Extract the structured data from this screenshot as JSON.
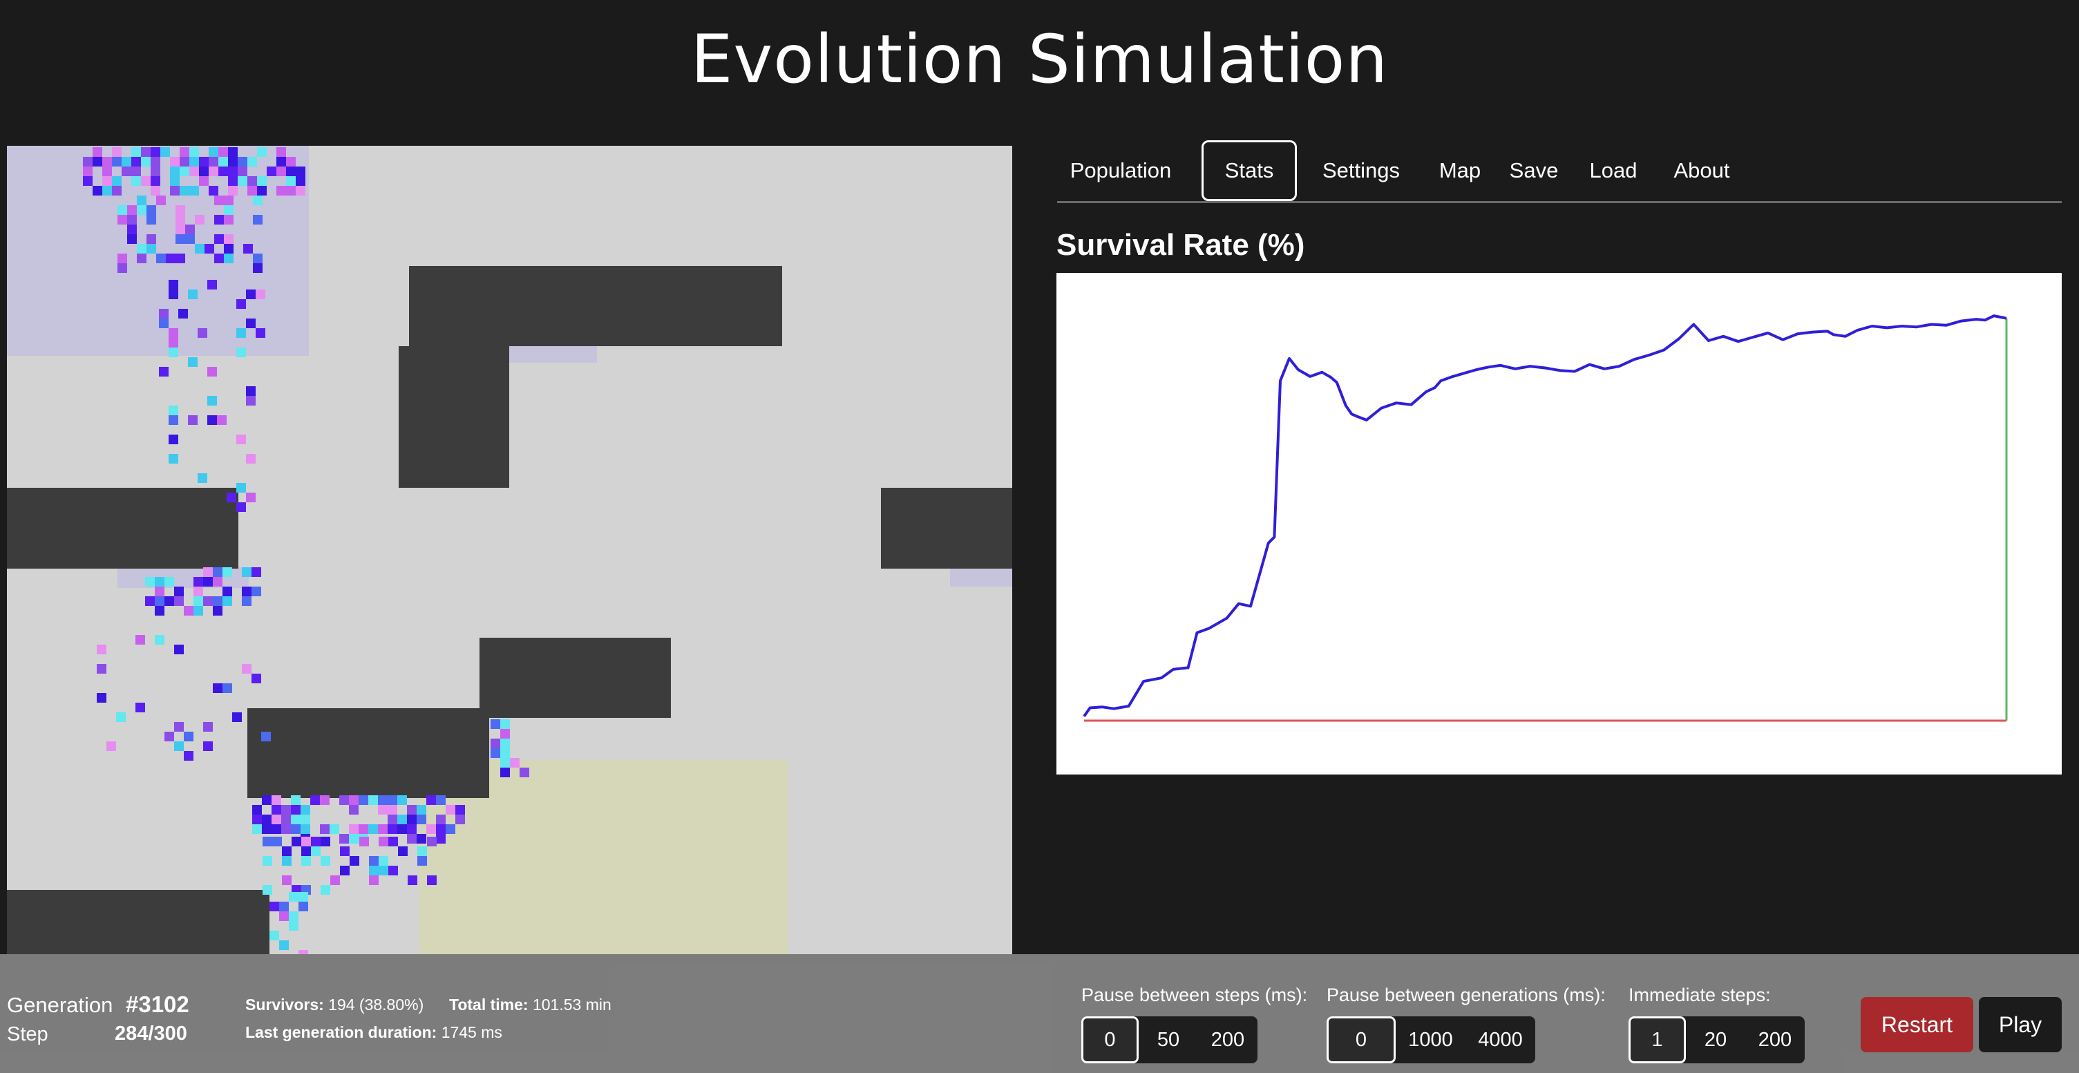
{
  "app": {
    "title": "Evolution Simulation"
  },
  "colors": {
    "background": "#1b1b1b",
    "world_floor": "#d3d3d3",
    "wall": "#3c3c3c",
    "spawn_zone": "#c6c3dd",
    "goal_zone": "#d6d6b9",
    "survival_line": "#2f1fd9",
    "baseline": "#e05252",
    "marker_line": "#5cb85c",
    "restart": "#a8282c",
    "play": "#1b1b1b"
  },
  "tabs": [
    {
      "label": "Population",
      "active": false
    },
    {
      "label": "Stats",
      "active": true
    },
    {
      "label": "Settings",
      "active": false
    },
    {
      "label": "Map",
      "active": false
    },
    {
      "label": "Save",
      "active": false
    },
    {
      "label": "Load",
      "active": false
    },
    {
      "label": "About",
      "active": false
    }
  ],
  "chart_data": {
    "type": "line",
    "title": "Survival Rate (%)",
    "xlabel": "",
    "ylabel": "",
    "grid": false,
    "legend": "none",
    "x_range": [
      0,
      3102
    ],
    "ylim": [
      0,
      50
    ],
    "series": [
      {
        "x": [
          0,
          20,
          60,
          100,
          150,
          200,
          260,
          300,
          350,
          380,
          420,
          480,
          520,
          560,
          620,
          640,
          660,
          690,
          720,
          760,
          800,
          830,
          850,
          880,
          900,
          920,
          950,
          1000,
          1050,
          1100,
          1120,
          1150,
          1180,
          1200,
          1240,
          1280,
          1320,
          1360,
          1400,
          1450,
          1500,
          1550,
          1600,
          1650,
          1700,
          1750,
          1800,
          1850,
          1900,
          1950,
          2000,
          2050,
          2100,
          2150,
          2200,
          2250,
          2300,
          2350,
          2400,
          2450,
          2500,
          2520,
          2560,
          2600,
          2650,
          2700,
          2750,
          2800,
          2850,
          2900,
          2950,
          3000,
          3030,
          3060,
          3090,
          3102
        ],
        "y": [
          0.5,
          1.5,
          1.6,
          1.4,
          1.7,
          4.6,
          5.0,
          6.0,
          6.2,
          10.3,
          10.8,
          12.0,
          13.7,
          13.4,
          20.8,
          21.5,
          39.8,
          42.4,
          41.1,
          40.3,
          40.8,
          40.2,
          39.6,
          36.9,
          35.9,
          35.6,
          35.2,
          36.6,
          37.2,
          37.0,
          37.6,
          38.5,
          39.0,
          39.8,
          40.3,
          40.7,
          41.1,
          41.4,
          41.6,
          41.2,
          41.5,
          41.3,
          41.0,
          40.9,
          41.7,
          41.2,
          41.5,
          42.3,
          42.8,
          43.4,
          44.7,
          46.4,
          44.5,
          45.0,
          44.4,
          44.9,
          45.4,
          44.6,
          45.3,
          45.5,
          45.6,
          45.2,
          45.0,
          45.7,
          46.2,
          46.0,
          46.2,
          46.1,
          46.4,
          46.3,
          46.8,
          47.0,
          46.9,
          47.4,
          47.2,
          47.1
        ]
      }
    ],
    "baseline_y": 0
  },
  "controls": {
    "generation_label": "Generation",
    "generation_value": "#3102",
    "step_label": "Step",
    "step_value": "284/300",
    "survivors_label": "Survivors:",
    "survivors_value": "194 (38.80%)",
    "total_time_label": "Total time:",
    "total_time_value": "101.53 min",
    "last_gen_label": "Last generation duration:",
    "last_gen_value": "1745 ms",
    "pause_steps": {
      "label": "Pause between steps (ms):",
      "options": [
        "0",
        "50",
        "200"
      ],
      "selected": 0
    },
    "pause_generations": {
      "label": "Pause between generations (ms):",
      "options": [
        "0",
        "1000",
        "4000"
      ],
      "selected": 0
    },
    "immediate_steps": {
      "label": "Immediate steps:",
      "options": [
        "1",
        "20",
        "200"
      ],
      "selected": 0
    },
    "restart_label": "Restart",
    "play_label": "Play"
  }
}
